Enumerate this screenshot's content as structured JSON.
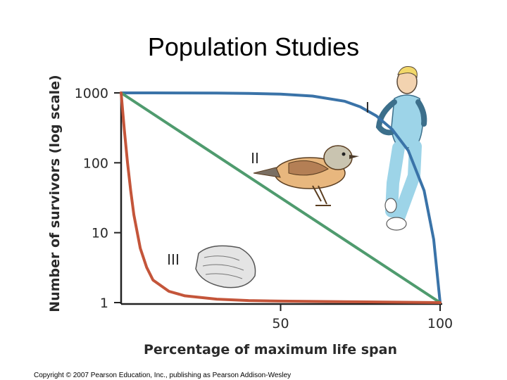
{
  "page": {
    "title": "Population Studies",
    "copyright": "Copyright © 2007 Pearson Education, Inc., publishing as Pearson Addison-Wesley"
  },
  "chart_data": {
    "type": "line",
    "title": "Population Studies",
    "xlabel": "Percentage of maximum life span",
    "ylabel": "Number of survivors (log scale)",
    "x_ticks": [
      50,
      100
    ],
    "y_ticks": [
      1,
      10,
      100,
      1000
    ],
    "y_tick_labels": [
      "1",
      "10",
      "100",
      "1000"
    ],
    "y_scale": "log",
    "xlim": [
      0,
      100
    ],
    "ylim": [
      1,
      1000
    ],
    "grid": false,
    "series": [
      {
        "name": "I",
        "color": "#3a73a8",
        "x": [
          0,
          10,
          20,
          30,
          40,
          50,
          60,
          70,
          75,
          80,
          85,
          90,
          95,
          98,
          100
        ],
        "y": [
          1000,
          1000,
          998,
          995,
          985,
          960,
          900,
          760,
          630,
          470,
          300,
          150,
          40,
          8,
          1
        ]
      },
      {
        "name": "II",
        "color": "#4f9b6e",
        "x": [
          0,
          100
        ],
        "y": [
          1000,
          1
        ]
      },
      {
        "name": "III",
        "color": "#c4553a",
        "x": [
          0,
          1,
          2,
          3,
          4,
          6,
          8,
          10,
          15,
          20,
          30,
          40,
          50,
          70,
          100
        ],
        "y": [
          1000,
          300,
          100,
          40,
          18,
          6,
          3.2,
          2.1,
          1.45,
          1.25,
          1.12,
          1.07,
          1.05,
          1.03,
          1.0
        ]
      }
    ],
    "annotations": [
      "I",
      "II",
      "III"
    ]
  }
}
